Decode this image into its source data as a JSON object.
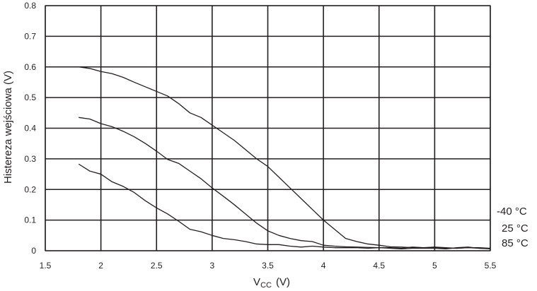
{
  "chart_data": {
    "type": "line",
    "xlabel_main": "V",
    "xlabel_sub": "CC",
    "xlabel_unit": "(V)",
    "ylabel": "Histereza wejściowa (V)",
    "xlim": [
      1.5,
      5.5
    ],
    "ylim": [
      0,
      0.8
    ],
    "x_ticks": [
      1.5,
      2,
      2.5,
      3,
      3.5,
      4,
      4.5,
      5,
      5.5
    ],
    "x_tick_labels": [
      "1.5",
      "2",
      "2.5",
      "3",
      "3.5",
      "4",
      "4.5",
      "5",
      "5.5"
    ],
    "y_ticks": [
      0,
      0.1,
      0.2,
      0.3,
      0.4,
      0.5,
      0.6,
      0.7,
      0.8
    ],
    "y_tick_labels": [
      "0",
      "0.1",
      "0.2",
      "0.3",
      "0.4",
      "0.5",
      "0.6",
      "0.7",
      "0.8"
    ],
    "grid": true,
    "series": [
      {
        "name": "-40 °C",
        "color": "#231f20",
        "x": [
          1.8,
          1.9,
          2.0,
          2.1,
          2.2,
          2.3,
          2.4,
          2.5,
          2.6,
          2.7,
          2.8,
          2.9,
          3.0,
          3.1,
          3.2,
          3.3,
          3.4,
          3.5,
          3.6,
          3.7,
          3.8,
          3.9,
          4.0,
          4.1,
          4.2,
          4.3,
          4.4,
          4.5,
          4.6,
          4.7,
          4.8,
          4.9,
          5.0,
          5.1,
          5.2,
          5.3,
          5.4,
          5.5
        ],
        "values": [
          0.6,
          0.595,
          0.585,
          0.578,
          0.566,
          0.55,
          0.535,
          0.52,
          0.505,
          0.48,
          0.45,
          0.435,
          0.41,
          0.385,
          0.36,
          0.33,
          0.3,
          0.275,
          0.24,
          0.205,
          0.17,
          0.135,
          0.1,
          0.07,
          0.04,
          0.03,
          0.022,
          0.018,
          0.013,
          0.012,
          0.01,
          0.01,
          0.01,
          0.008,
          0.008,
          0.01,
          0.008,
          0.007
        ]
      },
      {
        "name": "25 °C",
        "color": "#231f20",
        "x": [
          1.8,
          1.9,
          2.0,
          2.1,
          2.2,
          2.3,
          2.4,
          2.5,
          2.6,
          2.7,
          2.8,
          2.9,
          3.0,
          3.1,
          3.2,
          3.3,
          3.4,
          3.5,
          3.6,
          3.7,
          3.8,
          3.9,
          4.0,
          4.1,
          4.2,
          4.3,
          4.4,
          4.5,
          4.6,
          4.7,
          4.8,
          4.9,
          5.0,
          5.1,
          5.2,
          5.3,
          5.4,
          5.5
        ],
        "values": [
          0.435,
          0.43,
          0.415,
          0.405,
          0.39,
          0.372,
          0.35,
          0.325,
          0.298,
          0.285,
          0.26,
          0.235,
          0.205,
          0.178,
          0.15,
          0.12,
          0.09,
          0.065,
          0.05,
          0.04,
          0.033,
          0.03,
          0.018,
          0.015,
          0.013,
          0.012,
          0.011,
          0.01,
          0.01,
          0.008,
          0.012,
          0.01,
          0.012,
          0.01,
          0.008,
          0.01,
          0.01,
          0.008
        ]
      },
      {
        "name": "85 °C",
        "color": "#231f20",
        "x": [
          1.8,
          1.9,
          2.0,
          2.1,
          2.2,
          2.3,
          2.4,
          2.5,
          2.6,
          2.7,
          2.8,
          2.9,
          3.0,
          3.1,
          3.2,
          3.3,
          3.4,
          3.5,
          3.6,
          3.7,
          3.8,
          3.9,
          4.0,
          4.1,
          4.2,
          4.3,
          4.4,
          4.5,
          4.6,
          4.7,
          4.8,
          4.9,
          5.0,
          5.1,
          5.2,
          5.3,
          5.4,
          5.5
        ],
        "values": [
          0.283,
          0.26,
          0.25,
          0.225,
          0.21,
          0.19,
          0.163,
          0.14,
          0.12,
          0.096,
          0.07,
          0.062,
          0.05,
          0.04,
          0.036,
          0.03,
          0.022,
          0.02,
          0.02,
          0.015,
          0.012,
          0.015,
          0.012,
          0.01,
          0.01,
          0.01,
          0.008,
          0.01,
          0.008,
          0.006,
          0.008,
          0.008,
          0.008,
          0.006,
          0.01,
          0.012,
          0.008,
          0.006
        ]
      }
    ],
    "series_label_order": [
      "-40 °C",
      "25 °C",
      "85 °C"
    ]
  }
}
